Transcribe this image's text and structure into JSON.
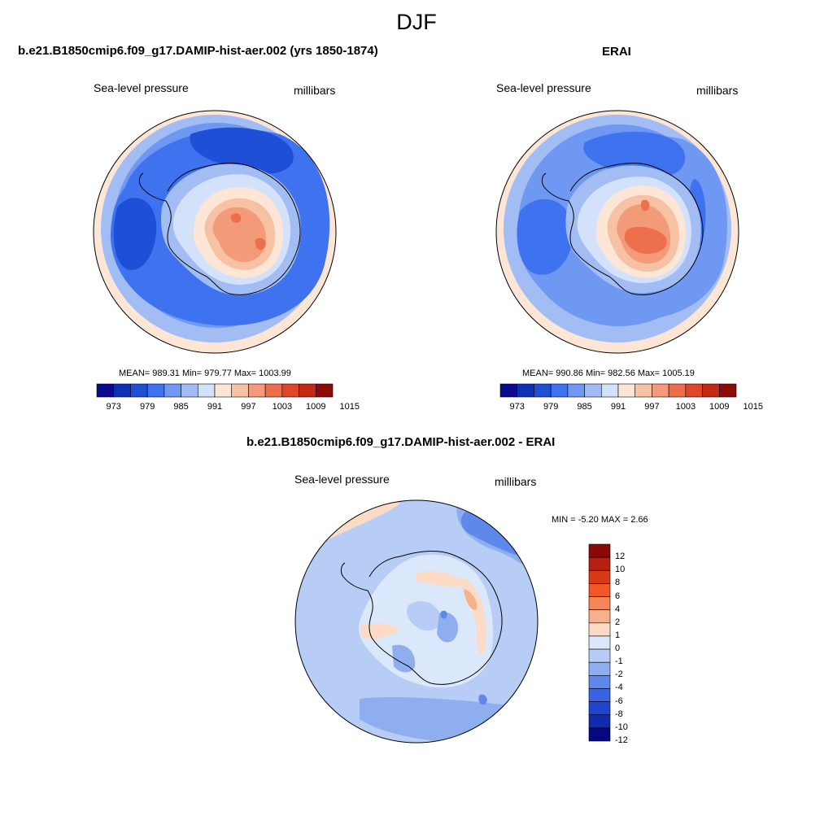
{
  "season": "DJF",
  "panels": {
    "model": {
      "title": "b.e21.B1850cmip6.f09_g17.DAMIP-hist-aer.002 (yrs 1850-1874)",
      "variable": "Sea-level pressure",
      "units": "millibars",
      "stats": "MEAN= 989.31  Min= 979.77  Max= 1003.99"
    },
    "obs": {
      "title": "ERAI",
      "variable": "Sea-level pressure",
      "units": "millibars",
      "stats": "MEAN= 990.86  Min= 982.56  Max= 1005.19"
    },
    "diff": {
      "title": "b.e21.B1850cmip6.f09_g17.DAMIP-hist-aer.002 - ERAI",
      "variable": "Sea-level pressure",
      "units": "millibars",
      "stats": "MIN =  -5.20 MAX =   2.66"
    }
  },
  "colorbar_slp": {
    "colors": [
      "#0a0a8a",
      "#0f2fb5",
      "#1f4fd6",
      "#3f72ee",
      "#6f98f2",
      "#a2bdf4",
      "#d3e2fa",
      "#fde6d6",
      "#f7c1a3",
      "#f39a78",
      "#ee6f4c",
      "#e0452a",
      "#c32a14",
      "#8c0a06"
    ],
    "labels": [
      "973",
      "979",
      "985",
      "991",
      "997",
      "1003",
      "1009",
      "1015"
    ]
  },
  "colorbar_diff": {
    "colors": [
      "#8c0a06",
      "#b52010",
      "#d83a18",
      "#f0582a",
      "#f3875a",
      "#f6b08a",
      "#fbdac6",
      "#dbe8fb",
      "#b7cdf6",
      "#8eaef0",
      "#5f88eb",
      "#3a62e4",
      "#1f45cf",
      "#0f2cab",
      "#050880"
    ],
    "labels": [
      "12",
      "10",
      "8",
      "6",
      "4",
      "2",
      "1",
      "0",
      "-1",
      "-2",
      "-4",
      "-6",
      "-8",
      "-10",
      "-12"
    ]
  },
  "map_colors": {
    "outer_rim": "#fde6d6",
    "ocean_light": "#a2bdf4",
    "ocean_mid": "#6f98f2",
    "ocean_deep": "#3f72ee",
    "ocean_low": "#1f4fd6",
    "coast_pale": "#d3e2fa",
    "ice_1": "#fde6d6",
    "ice_2": "#f7c1a3",
    "ice_3": "#f39a78",
    "ice_4": "#ee6f4c",
    "diff_base": "#b7cdf6",
    "diff_pale": "#dbe8fb",
    "diff_warm": "#fbdac6",
    "diff_warm2": "#f6b08a",
    "diff_deep": "#8eaef0",
    "diff_deeper": "#5f88eb"
  }
}
